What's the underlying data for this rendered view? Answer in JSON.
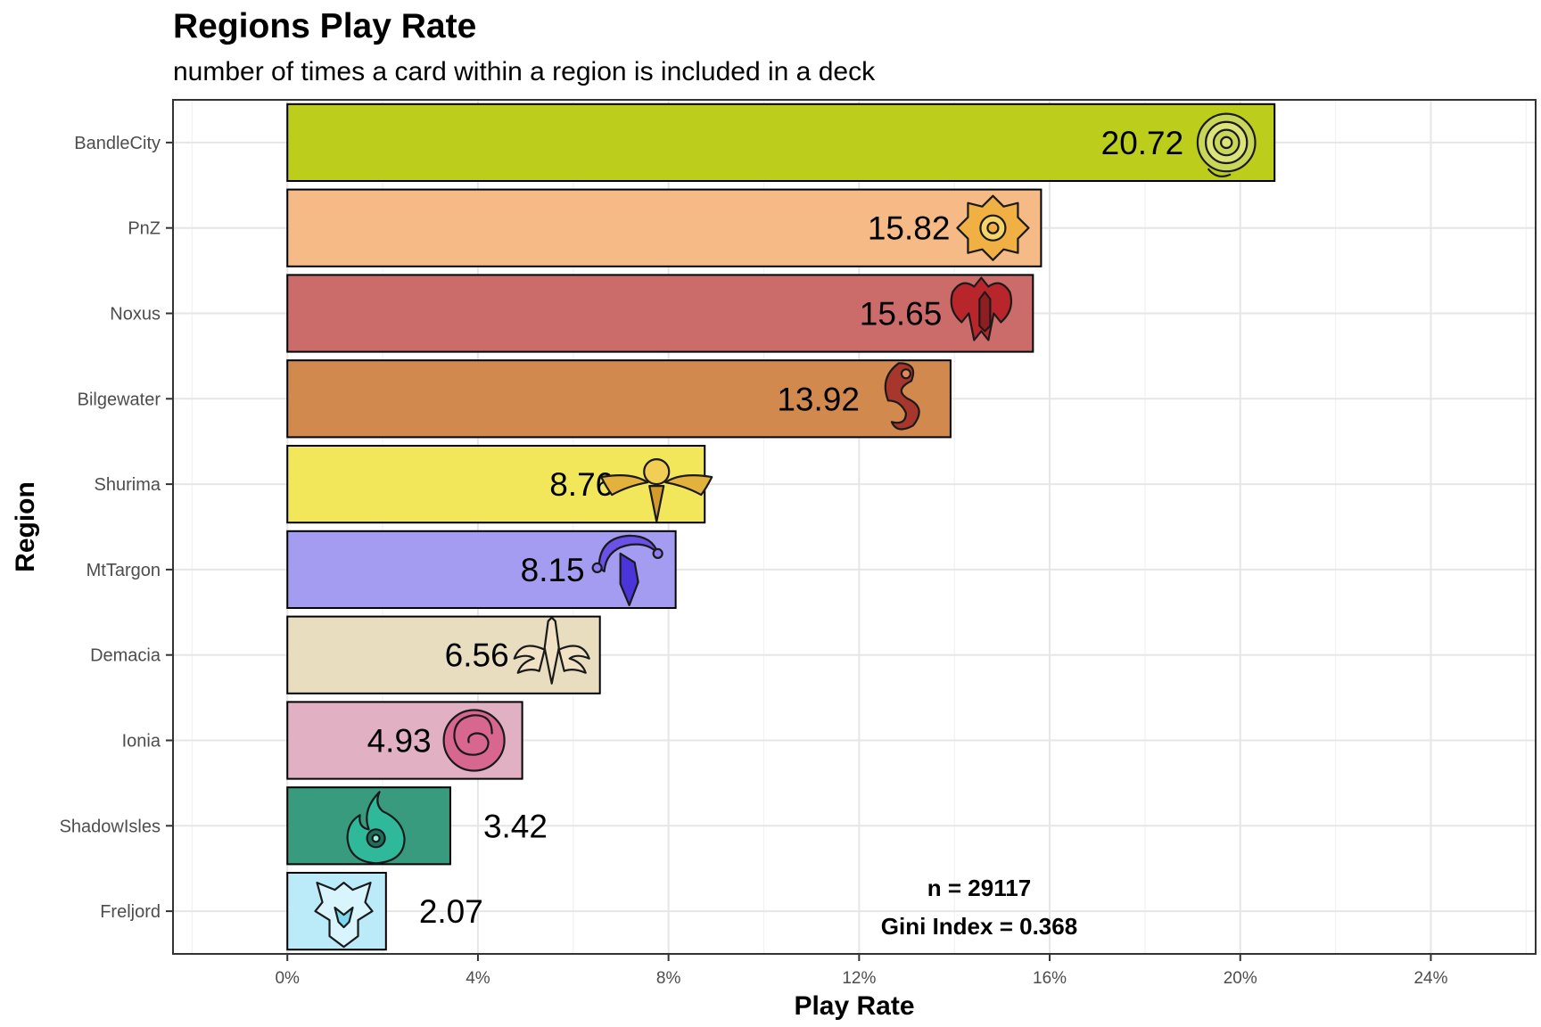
{
  "chart_data": {
    "type": "bar",
    "orientation": "horizontal",
    "title": "Regions Play Rate",
    "subtitle": "number of times a card within a region is included in a deck",
    "xlabel": "Play Rate",
    "ylabel": "Region",
    "xlim": [
      -2.4,
      26.2
    ],
    "xticks": [
      0,
      4,
      8,
      12,
      16,
      20,
      24
    ],
    "xtick_labels": [
      "0%",
      "4%",
      "8%",
      "12%",
      "16%",
      "20%",
      "24%"
    ],
    "grid": true,
    "legend": "none",
    "bars": [
      {
        "category": "BandleCity",
        "value": 20.72,
        "label": "20.72",
        "color": "#BCCD1C",
        "icon": "bandle-city-swirl-icon",
        "label_position": "inside"
      },
      {
        "category": "PnZ",
        "value": 15.82,
        "label": "15.82",
        "color": "#F6BA86",
        "icon": "piltover-zaun-gear-icon",
        "label_position": "inside"
      },
      {
        "category": "Noxus",
        "value": 15.65,
        "label": "15.65",
        "color": "#CB6C6B",
        "icon": "noxus-helm-icon",
        "label_position": "inside"
      },
      {
        "category": "Bilgewater",
        "value": 13.92,
        "label": "13.92",
        "color": "#D2894D",
        "icon": "bilgewater-serpent-icon",
        "label_position": "inside"
      },
      {
        "category": "Shurima",
        "value": 8.76,
        "label": "8.76",
        "color": "#F2E75A",
        "icon": "shurima-sun-disc-icon",
        "label_position": "inside"
      },
      {
        "category": "MtTargon",
        "value": 8.15,
        "label": "8.15",
        "color": "#A39CF0",
        "icon": "targon-crescent-icon",
        "label_position": "inside"
      },
      {
        "category": "Demacia",
        "value": 6.56,
        "label": "6.56",
        "color": "#E9DDC0",
        "icon": "demacia-wings-icon",
        "label_position": "inside"
      },
      {
        "category": "Ionia",
        "value": 4.93,
        "label": "4.93",
        "color": "#E1B0C3",
        "icon": "ionia-spiral-icon",
        "label_position": "inside"
      },
      {
        "category": "ShadowIsles",
        "value": 3.42,
        "label": "3.42",
        "color": "#389B7E",
        "icon": "shadow-isles-flame-icon",
        "label_position": "outside"
      },
      {
        "category": "Freljord",
        "value": 2.07,
        "label": "2.07",
        "color": "#BBEAF8",
        "icon": "freljord-crest-icon",
        "label_position": "outside"
      }
    ],
    "annotations": [
      "n = 29117",
      "Gini Index = 0.368"
    ]
  }
}
